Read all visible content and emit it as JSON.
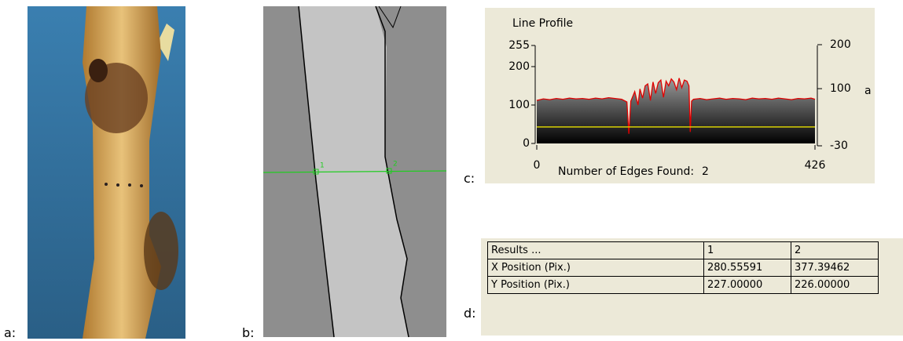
{
  "panels": {
    "a": "a:",
    "b": "b:",
    "c": "c:",
    "d": "d:"
  },
  "image_b": {
    "marker_1": "1",
    "marker_2": "2"
  },
  "chart_data": {
    "type": "line",
    "title": "Line Profile",
    "y2label": "a",
    "annotation": {
      "label": "Number of Edges Found:",
      "value": "2"
    },
    "xlim": [
      0,
      426
    ],
    "xticks": [
      0,
      426
    ],
    "ylim": [
      0,
      255
    ],
    "yticks": [
      0,
      100,
      200,
      255
    ],
    "y2lim": [
      -30,
      200
    ],
    "y2ticks": [
      -30,
      100,
      200
    ],
    "series": [
      {
        "color": "#e00000",
        "fill": true,
        "x": [
          0,
          10,
          20,
          30,
          40,
          50,
          60,
          70,
          80,
          90,
          100,
          110,
          120,
          130,
          138,
          141,
          144,
          150,
          155,
          158,
          162,
          166,
          170,
          174,
          178,
          182,
          186,
          190,
          194,
          198,
          202,
          206,
          210,
          214,
          218,
          222,
          226,
          230,
          233,
          235,
          237,
          240,
          250,
          260,
          270,
          280,
          290,
          300,
          310,
          320,
          330,
          340,
          350,
          360,
          370,
          380,
          390,
          400,
          410,
          420,
          426
        ],
        "values": [
          112,
          116,
          114,
          117,
          115,
          118,
          116,
          117,
          115,
          118,
          116,
          119,
          117,
          115,
          108,
          25,
          110,
          135,
          100,
          142,
          118,
          150,
          155,
          112,
          160,
          130,
          158,
          165,
          120,
          162,
          150,
          168,
          160,
          140,
          170,
          145,
          165,
          162,
          150,
          30,
          110,
          115,
          117,
          114,
          116,
          118,
          115,
          117,
          116,
          114,
          118,
          116,
          117,
          115,
          118,
          116,
          114,
          117,
          116,
          118,
          115
        ]
      },
      {
        "color": "#e8e000",
        "fill": false,
        "x": [
          0,
          426
        ],
        "values": [
          43,
          43
        ]
      }
    ]
  },
  "table": {
    "header": [
      "Results ...",
      "1",
      "2"
    ],
    "rows": [
      [
        "X Position (Pix.)",
        "280.55591",
        "377.39462"
      ],
      [
        "Y Position (Pix.)",
        "227.00000",
        "226.00000"
      ]
    ]
  }
}
